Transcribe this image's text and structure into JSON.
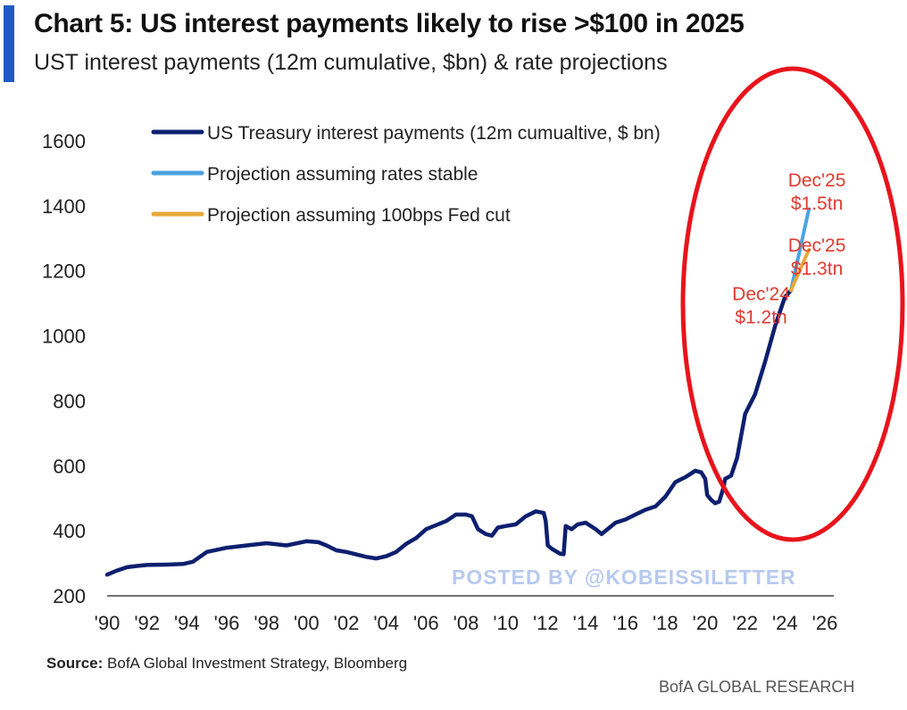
{
  "header": {
    "title": "Chart 5: US interest payments likely to rise >$100 in 2025",
    "subtitle": "UST interest payments (12m cumulative, $bn) & rate projections",
    "accent_color": "#1f5bc4"
  },
  "chart_data": {
    "type": "line",
    "xlim": [
      1990,
      2026
    ],
    "ylim": [
      200,
      1600
    ],
    "x_ticks": [
      1990,
      1992,
      1994,
      1996,
      1998,
      2000,
      2002,
      2004,
      2006,
      2008,
      2010,
      2012,
      2014,
      2016,
      2018,
      2020,
      2022,
      2024,
      2026
    ],
    "x_tick_labels": [
      "'90",
      "'92",
      "'94",
      "'96",
      "'98",
      "'00",
      "'02",
      "'04",
      "'06",
      "'08",
      "'10",
      "'12",
      "'14",
      "'16",
      "'18",
      "'20",
      "'22",
      "'24",
      "'26"
    ],
    "y_ticks": [
      200,
      400,
      600,
      800,
      1000,
      1200,
      1400,
      1600
    ],
    "y_tick_labels": [
      "200",
      "400",
      "600",
      "800",
      "1000",
      "1200",
      "1400",
      "1600"
    ],
    "grid": false,
    "legend_position": "top-left",
    "series": [
      {
        "name": "US Treasury interest payments (12m cumualtive, $ bn)",
        "color": "#0d1f6e",
        "x": [
          1990,
          1990.5,
          1991,
          1991.5,
          1992,
          1993,
          1993.8,
          1994.3,
          1995,
          1996,
          1997,
          1998,
          1999,
          2000,
          2000.6,
          2001,
          2001.5,
          2002,
          2003,
          2003.5,
          2004,
          2004.5,
          2005,
          2005.5,
          2006,
          2007,
          2007.5,
          2008,
          2008.3,
          2008.6,
          2009,
          2009.3,
          2009.6,
          2010,
          2010.5,
          2011,
          2011.5,
          2011.9,
          2012,
          2012.1,
          2012.3,
          2012.7,
          2012.9,
          2013,
          2013.3,
          2013.6,
          2014,
          2014.5,
          2014.8,
          2015,
          2015.5,
          2016,
          2016.5,
          2017,
          2017.5,
          2018,
          2018.5,
          2019,
          2019.5,
          2019.8,
          2020,
          2020.1,
          2020.3,
          2020.5,
          2020.7,
          2020.9,
          2021,
          2021.3,
          2021.6,
          2022,
          2022.5,
          2023,
          2023.5,
          2024,
          2024.3
        ],
        "y": [
          265,
          278,
          288,
          292,
          295,
          296,
          298,
          305,
          335,
          348,
          355,
          362,
          355,
          368,
          365,
          355,
          340,
          335,
          320,
          315,
          322,
          335,
          360,
          378,
          405,
          430,
          450,
          450,
          445,
          405,
          390,
          385,
          410,
          415,
          420,
          445,
          460,
          455,
          430,
          355,
          345,
          330,
          328,
          415,
          405,
          420,
          425,
          405,
          390,
          400,
          425,
          435,
          450,
          465,
          475,
          505,
          550,
          565,
          585,
          580,
          560,
          510,
          495,
          485,
          490,
          530,
          560,
          570,
          625,
          760,
          820,
          920,
          1030,
          1120,
          1140
        ]
      },
      {
        "name": "Projection assuming rates stable",
        "color": "#4aa3df",
        "x": [
          2024.3,
          2025.2
        ],
        "y": [
          1140,
          1390
        ]
      },
      {
        "name": "Projection assuming 100bps Fed cut",
        "color": "#e8a93a",
        "x": [
          2024.3,
          2025.2
        ],
        "y": [
          1140,
          1265
        ]
      }
    ],
    "annotations": [
      {
        "line1": "Dec'25",
        "line2": "$1.5tn",
        "x": 2025.6,
        "y": 1460,
        "anchor": "middle"
      },
      {
        "line1": "Dec'25",
        "line2": "$1.3tn",
        "x": 2025.6,
        "y": 1260,
        "anchor": "middle"
      },
      {
        "line1": "Dec'24",
        "line2": "$1.2tn",
        "x": 2022.8,
        "y": 1110,
        "anchor": "middle"
      }
    ],
    "annotation_color": "#e03a30",
    "highlight_color": "#e8141c"
  },
  "footer": {
    "source_label": "Source:",
    "source_text": " BofA Global Investment Strategy, Bloomberg",
    "brand": "BofA GLOBAL RESEARCH",
    "watermark": "POSTED BY @KOBEISSILETTER"
  }
}
